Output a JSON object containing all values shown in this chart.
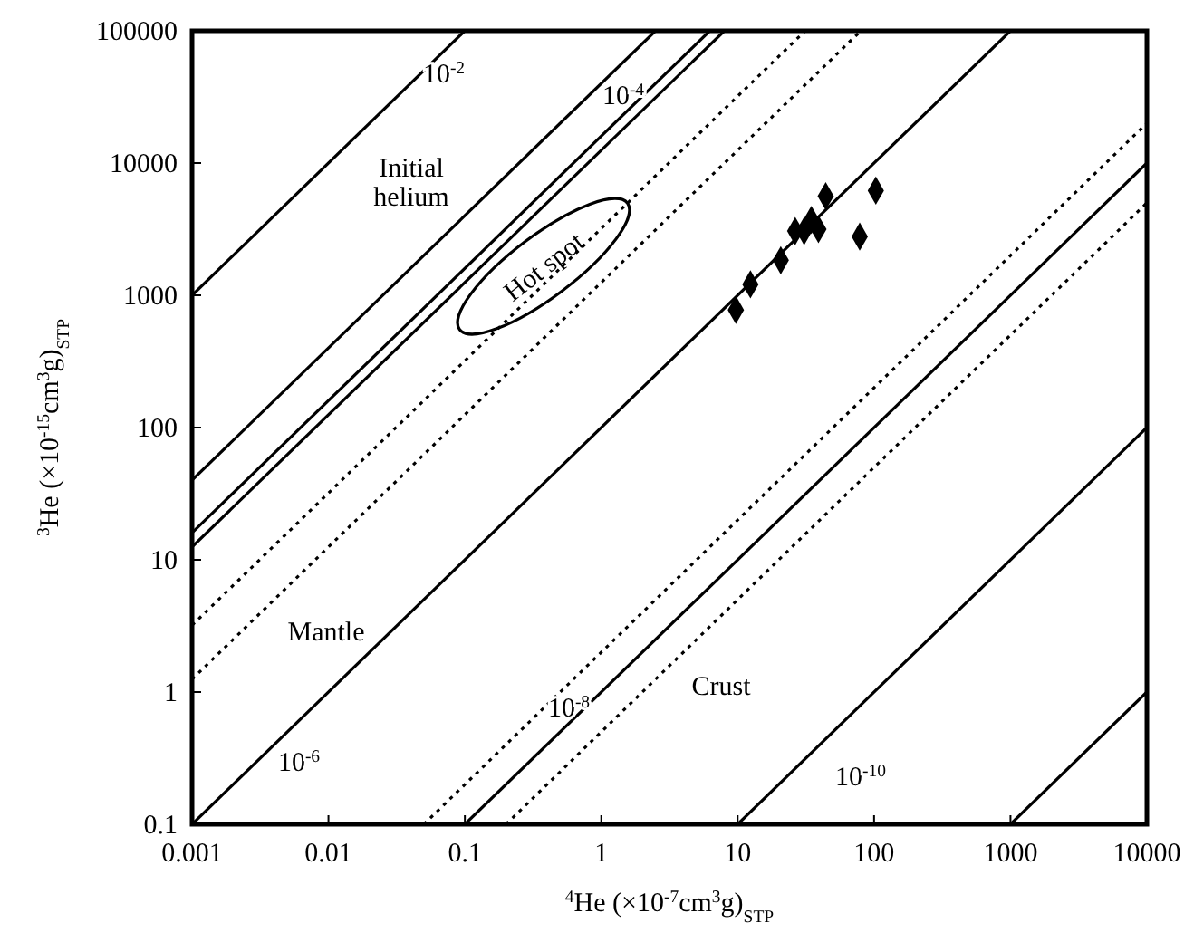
{
  "chart_data": {
    "type": "scatter",
    "xlabel": "$^{4}$He (×10$^{-7}$cm$^{3}$g)$_{STP}$",
    "ylabel": "$^{3}$He (×10$^{-15}$cm$^{3}$g)$_{STP}$",
    "log": "xy",
    "xlim": [
      0.001,
      10000
    ],
    "ylim": [
      0.1,
      100000
    ],
    "xticks": [
      0.001,
      0.01,
      0.1,
      1,
      10,
      100,
      1000,
      10000
    ],
    "yticks": [
      0.1,
      1,
      10,
      100,
      1000,
      10000,
      100000
    ],
    "grid": false,
    "legend": false,
    "series": [
      {
        "type": "line",
        "name": "10$^{-2}$",
        "color": "#000000",
        "line_style": "solid",
        "x": [
          0.001,
          0.1
        ],
        "values": [
          1000,
          100000
        ]
      },
      {
        "type": "line",
        "name": "10$^{-4}$",
        "color": "#000000",
        "line_style": "solid",
        "x": [
          0.001,
          2.5
        ],
        "values": [
          40,
          100000
        ]
      },
      {
        "type": "line",
        "color": "#000000",
        "line_style": "solid",
        "x": [
          0.001,
          6.25
        ],
        "values": [
          16,
          100000
        ]
      },
      {
        "type": "line",
        "color": "#000000",
        "line_style": "solid",
        "x": [
          0.001,
          8
        ],
        "values": [
          12.5,
          100000
        ]
      },
      {
        "type": "line",
        "color": "#000000",
        "line_style": "dotted",
        "x": [
          0.001,
          31.25
        ],
        "values": [
          3.2,
          100000
        ]
      },
      {
        "type": "line",
        "color": "#000000",
        "line_style": "dotted",
        "x": [
          0.001,
          80
        ],
        "values": [
          1.25,
          100000
        ]
      },
      {
        "type": "line",
        "name": "10$^{-6}$",
        "color": "#000000",
        "line_style": "solid",
        "x": [
          0.001,
          1000
        ],
        "values": [
          0.1,
          100000
        ]
      },
      {
        "type": "line",
        "color": "#000000",
        "line_style": "dotted",
        "x": [
          0.05,
          10000
        ],
        "values": [
          0.1,
          20000
        ]
      },
      {
        "type": "line",
        "name": "10$^{-8}$",
        "color": "#000000",
        "line_style": "solid",
        "x": [
          0.1,
          10000
        ],
        "values": [
          0.1,
          10000
        ]
      },
      {
        "type": "line",
        "color": "#000000",
        "line_style": "dotted",
        "x": [
          0.2,
          10000
        ],
        "values": [
          0.1,
          5000
        ]
      },
      {
        "type": "line",
        "name": "10$^{-10}$",
        "color": "#000000",
        "line_style": "solid",
        "x": [
          10,
          10000
        ],
        "values": [
          0.1,
          100
        ]
      },
      {
        "type": "line",
        "color": "#000000",
        "line_style": "solid",
        "x": [
          1000,
          10000
        ],
        "values": [
          0.1,
          1
        ]
      },
      {
        "type": "scatter",
        "color": "#000000",
        "marker": "diamond",
        "x": [
          9.7,
          12.4,
          20.7,
          26.4,
          30.7,
          34.7,
          39.1,
          44.2,
          78.5,
          103
        ],
        "values": [
          775,
          1210,
          1840,
          3060,
          3060,
          3710,
          3160,
          5620,
          2780,
          6190
        ]
      }
    ],
    "annotations": [
      "Hot spot",
      "Initial",
      "helium",
      "Mantle",
      "Crust"
    ]
  }
}
